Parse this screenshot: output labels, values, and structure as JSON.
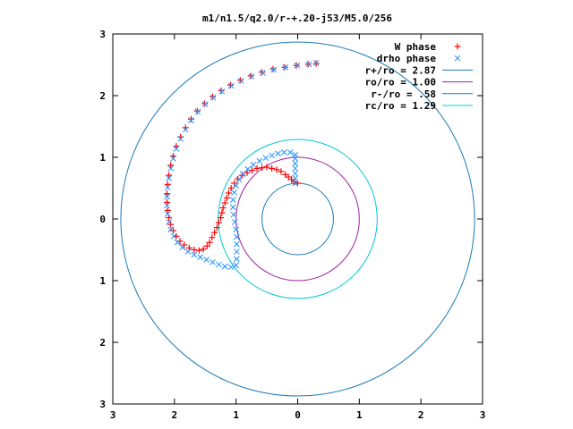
{
  "chart_data": {
    "type": "scatter",
    "title": "m1/n1.5/q2.0/r-+.20-j53/M5.0/256",
    "xlim": [
      -3,
      3
    ],
    "ylim": [
      -3,
      3
    ],
    "x_tick_labels": [
      "3",
      "2",
      "1",
      "0",
      "1",
      "2",
      "3"
    ],
    "y_tick_labels": [
      "3",
      "2",
      "1",
      "0",
      "1",
      "2",
      "3"
    ],
    "x_tick_values": [
      -3,
      -2,
      -1,
      0,
      1,
      2,
      3
    ],
    "y_tick_values": [
      3,
      2,
      1,
      0,
      -1,
      -2,
      -3
    ],
    "legend_position": "top-right",
    "series": [
      {
        "name": "W phase",
        "kind": "points",
        "marker": "+",
        "color": "#ff0000",
        "points": [
          [
            0.0,
            0.58
          ],
          [
            -0.05,
            0.6
          ],
          [
            -0.1,
            0.64
          ],
          [
            -0.15,
            0.68
          ],
          [
            -0.2,
            0.72
          ],
          [
            -0.27,
            0.77
          ],
          [
            -0.34,
            0.8
          ],
          [
            -0.42,
            0.82
          ],
          [
            -0.5,
            0.84
          ],
          [
            -0.58,
            0.83
          ],
          [
            -0.66,
            0.82
          ],
          [
            -0.74,
            0.79
          ],
          [
            -0.82,
            0.75
          ],
          [
            -0.9,
            0.71
          ],
          [
            -0.97,
            0.65
          ],
          [
            -1.03,
            0.58
          ],
          [
            -1.08,
            0.5
          ],
          [
            -1.12,
            0.42
          ],
          [
            -1.15,
            0.34
          ],
          [
            -1.18,
            0.26
          ],
          [
            -1.21,
            0.18
          ],
          [
            -1.23,
            0.1
          ],
          [
            -1.25,
            0.02
          ],
          [
            -1.28,
            -0.06
          ],
          [
            -1.31,
            -0.14
          ],
          [
            -1.35,
            -0.22
          ],
          [
            -1.39,
            -0.3
          ],
          [
            -1.43,
            -0.38
          ],
          [
            -1.47,
            -0.44
          ],
          [
            -1.53,
            -0.49
          ],
          [
            -1.6,
            -0.51
          ],
          [
            -1.68,
            -0.5
          ],
          [
            -1.76,
            -0.47
          ],
          [
            -1.84,
            -0.42
          ],
          [
            -1.91,
            -0.36
          ],
          [
            -1.97,
            -0.28
          ],
          [
            -2.02,
            -0.19
          ],
          [
            -2.06,
            -0.09
          ],
          [
            -2.09,
            0.02
          ],
          [
            -2.11,
            0.14
          ],
          [
            -2.12,
            0.27
          ],
          [
            -2.12,
            0.41
          ],
          [
            -2.11,
            0.56
          ],
          [
            -2.09,
            0.71
          ],
          [
            -2.06,
            0.87
          ],
          [
            -2.02,
            1.02
          ],
          [
            -1.97,
            1.18
          ],
          [
            -1.9,
            1.33
          ],
          [
            -1.82,
            1.48
          ],
          [
            -1.73,
            1.62
          ],
          [
            -1.63,
            1.75
          ],
          [
            -1.51,
            1.87
          ],
          [
            -1.38,
            1.98
          ],
          [
            -1.24,
            2.08
          ],
          [
            -1.09,
            2.17
          ],
          [
            -0.93,
            2.25
          ],
          [
            -0.76,
            2.32
          ],
          [
            -0.58,
            2.38
          ],
          [
            -0.4,
            2.43
          ],
          [
            -0.21,
            2.46
          ],
          [
            -0.02,
            2.49
          ],
          [
            0.17,
            2.51
          ],
          [
            0.3,
            2.52
          ]
        ]
      },
      {
        "name": "drho phase",
        "kind": "points",
        "marker": "x",
        "color": "#1e90ff",
        "points": [
          [
            -0.04,
            0.58
          ],
          [
            -0.04,
            0.66
          ],
          [
            -0.04,
            0.74
          ],
          [
            -0.04,
            0.82
          ],
          [
            -0.04,
            0.9
          ],
          [
            -0.04,
            0.98
          ],
          [
            -0.04,
            1.04
          ],
          [
            -0.12,
            1.08
          ],
          [
            -0.22,
            1.08
          ],
          [
            -0.32,
            1.06
          ],
          [
            -0.42,
            1.03
          ],
          [
            -0.52,
            0.99
          ],
          [
            -0.62,
            0.94
          ],
          [
            -0.72,
            0.88
          ],
          [
            -0.81,
            0.81
          ],
          [
            -0.89,
            0.73
          ],
          [
            -0.95,
            0.64
          ],
          [
            -1.0,
            0.54
          ],
          [
            -1.03,
            0.43
          ],
          [
            -1.05,
            0.31
          ],
          [
            -1.05,
            0.19
          ],
          [
            -1.04,
            0.07
          ],
          [
            -1.02,
            -0.05
          ],
          [
            -1.0,
            -0.17
          ],
          [
            -0.99,
            -0.29
          ],
          [
            -0.99,
            -0.41
          ],
          [
            -0.99,
            -0.53
          ],
          [
            -0.99,
            -0.65
          ],
          [
            -1.0,
            -0.75
          ],
          [
            -1.08,
            -0.78
          ],
          [
            -1.18,
            -0.77
          ],
          [
            -1.28,
            -0.74
          ],
          [
            -1.38,
            -0.7
          ],
          [
            -1.48,
            -0.66
          ],
          [
            -1.58,
            -0.62
          ],
          [
            -1.68,
            -0.58
          ],
          [
            -1.78,
            -0.53
          ],
          [
            -1.87,
            -0.46
          ],
          [
            -1.95,
            -0.38
          ],
          [
            -2.01,
            -0.28
          ],
          [
            -2.06,
            -0.17
          ],
          [
            -2.09,
            -0.05
          ],
          [
            -2.11,
            0.08
          ],
          [
            -2.12,
            0.22
          ],
          [
            -2.12,
            0.36
          ],
          [
            -2.11,
            0.51
          ],
          [
            -2.09,
            0.66
          ],
          [
            -2.06,
            0.82
          ],
          [
            -2.02,
            0.98
          ],
          [
            -1.97,
            1.14
          ],
          [
            -1.9,
            1.3
          ],
          [
            -1.82,
            1.45
          ],
          [
            -1.73,
            1.6
          ],
          [
            -1.62,
            1.74
          ],
          [
            -1.5,
            1.86
          ],
          [
            -1.37,
            1.97
          ],
          [
            -1.23,
            2.07
          ],
          [
            -1.08,
            2.16
          ],
          [
            -0.92,
            2.24
          ],
          [
            -0.75,
            2.31
          ],
          [
            -0.57,
            2.37
          ],
          [
            -0.39,
            2.42
          ],
          [
            -0.2,
            2.46
          ],
          [
            -0.01,
            2.49
          ],
          [
            0.18,
            2.51
          ],
          [
            0.3,
            2.53
          ]
        ]
      },
      {
        "name": "r+/ro = 2.87",
        "kind": "circle",
        "r": 2.87,
        "color": "#1a7ab8"
      },
      {
        "name": "ro/ro = 1.00",
        "kind": "circle",
        "r": 1.0,
        "color": "#a020a0"
      },
      {
        "name": "r-/ro = .58",
        "kind": "circle",
        "r": 0.58,
        "color": "#1a7ab8"
      },
      {
        "name": "rc/ro = 1.29",
        "kind": "circle",
        "r": 1.29,
        "color": "#00c8d2"
      }
    ]
  }
}
